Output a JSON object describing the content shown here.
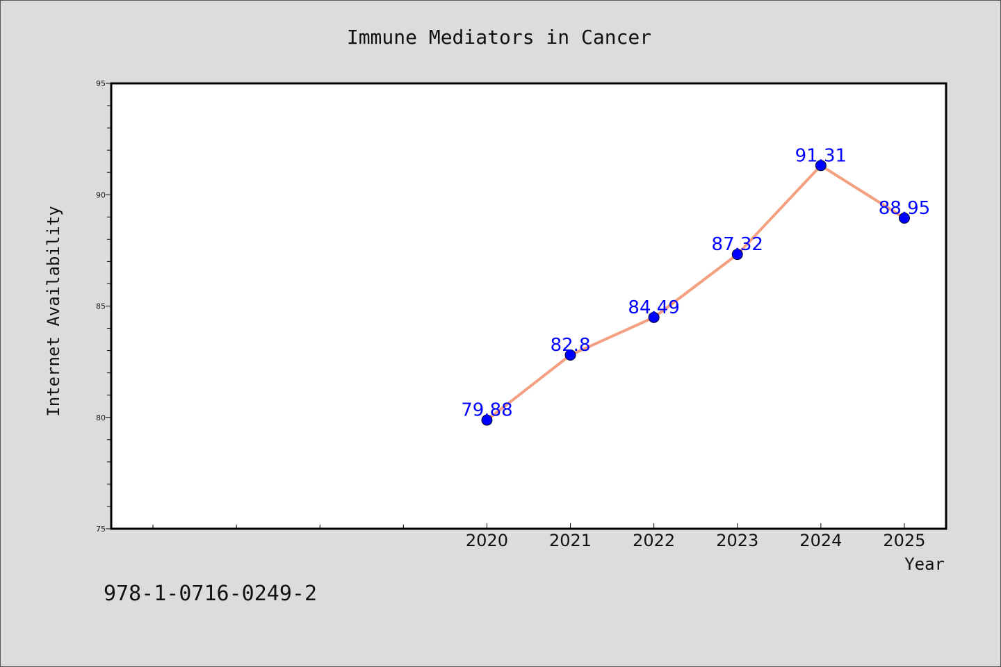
{
  "chart_data": {
    "type": "line",
    "title": "Immune Mediators in Cancer",
    "xlabel": "Year",
    "ylabel": "Internet Availability",
    "x": [
      2020,
      2021,
      2022,
      2023,
      2024,
      2025
    ],
    "series": [
      {
        "values": [
          79.88,
          82.8,
          84.49,
          87.32,
          91.31,
          88.95
        ]
      }
    ],
    "data_labels": [
      "79.88",
      "82.8",
      "84.49",
      "87.32",
      "91.31",
      "88.95"
    ],
    "xticks": [
      2016,
      2017,
      2018,
      2019,
      2020,
      2021,
      2022,
      2023,
      2024,
      2025
    ],
    "xtick_labels": [
      "",
      "",
      "",
      "",
      "2020",
      "2021",
      "2022",
      "2023",
      "2024",
      "2025"
    ],
    "xlim": [
      2015.5,
      2025.5
    ],
    "ylim": [
      75,
      95
    ],
    "yticks": [
      75,
      80,
      85,
      90,
      95
    ],
    "ytick_labels": [
      "75",
      "80",
      "85",
      "90",
      "95"
    ],
    "line_color": "#f4a080",
    "marker_color": "#0000ff",
    "label_color": "#0000ff",
    "grid": false
  },
  "footer_text": "978-1-0716-0249-2"
}
